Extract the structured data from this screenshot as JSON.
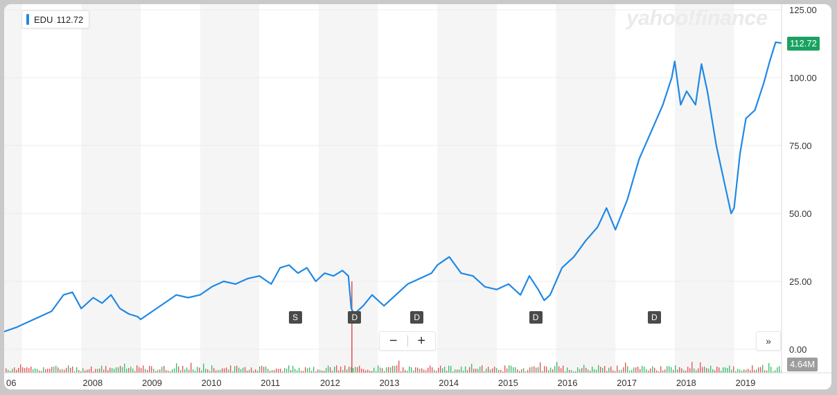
{
  "brand": {
    "watermark": "yahoo!finance"
  },
  "legend": {
    "symbol": "EDU",
    "value": "112.72",
    "color": "#1e88e5"
  },
  "price_tag": {
    "label": "112.72",
    "color": "#1aa260"
  },
  "volume_tag": {
    "label": "4.64M"
  },
  "controls": {
    "zoom_out": "−",
    "zoom_in": "+",
    "expand": "»"
  },
  "events": [
    {
      "label": "S",
      "year": 2011.6
    },
    {
      "label": "D",
      "year": 2012.6
    },
    {
      "label": "D",
      "year": 2013.65
    },
    {
      "label": "D",
      "year": 2015.65
    },
    {
      "label": "D",
      "year": 2017.65
    }
  ],
  "chart_data": {
    "type": "line",
    "title": "",
    "xlabel": "",
    "ylabel": "",
    "ylim": [
      0,
      125
    ],
    "xlim": [
      2006.7,
      2019.8
    ],
    "y_ticks": [
      "125.00",
      "100.00",
      "75.00",
      "50.00",
      "25.00",
      "0.00"
    ],
    "x_tick_labels": [
      "06",
      "2008",
      "2009",
      "2010",
      "2011",
      "2012",
      "2013",
      "2014",
      "2015",
      "2016",
      "2017",
      "2018",
      "2019"
    ],
    "grid": true,
    "legend": "top-left",
    "series": [
      {
        "name": "EDU",
        "color": "#1e88e5",
        "x": [
          2006.7,
          2006.9,
          2007.1,
          2007.3,
          2007.5,
          2007.7,
          2007.85,
          2008.0,
          2008.1,
          2008.2,
          2008.35,
          2008.5,
          2008.65,
          2008.8,
          2008.95,
          2009.0,
          2009.2,
          2009.4,
          2009.6,
          2009.8,
          2010.0,
          2010.2,
          2010.4,
          2010.6,
          2010.8,
          2011.0,
          2011.2,
          2011.35,
          2011.5,
          2011.65,
          2011.8,
          2011.95,
          2012.1,
          2012.25,
          2012.4,
          2012.5,
          2012.55,
          2012.6,
          2012.75,
          2012.9,
          2013.1,
          2013.3,
          2013.5,
          2013.7,
          2013.9,
          2014.0,
          2014.2,
          2014.4,
          2014.6,
          2014.8,
          2015.0,
          2015.2,
          2015.4,
          2015.55,
          2015.7,
          2015.8,
          2015.9,
          2016.1,
          2016.3,
          2016.5,
          2016.7,
          2016.85,
          2017.0,
          2017.2,
          2017.4,
          2017.6,
          2017.8,
          2017.95,
          2018.0,
          2018.1,
          2018.2,
          2018.35,
          2018.45,
          2018.55,
          2018.7,
          2018.85,
          2018.95,
          2019.0,
          2019.1,
          2019.2,
          2019.35,
          2019.5,
          2019.6,
          2019.7,
          2019.8
        ],
        "values": [
          6.5,
          8,
          10,
          12,
          14,
          20,
          21,
          15,
          17,
          19,
          17,
          20,
          15,
          13,
          12,
          11,
          14,
          17,
          20,
          19,
          20,
          23,
          25,
          24,
          26,
          27,
          24,
          30,
          31,
          28,
          30,
          25,
          28,
          27,
          29,
          27,
          15,
          13,
          16,
          20,
          16,
          20,
          24,
          26,
          28,
          31,
          34,
          28,
          27,
          23,
          22,
          24,
          20,
          27,
          22,
          18,
          20,
          30,
          34,
          40,
          45,
          52,
          44,
          55,
          70,
          80,
          90,
          100,
          106,
          90,
          95,
          90,
          105,
          95,
          75,
          60,
          50,
          52,
          72,
          85,
          88,
          98,
          106,
          113,
          112.72
        ]
      }
    ],
    "volume": {
      "unit": "M",
      "last": 4.64,
      "up_color": "#3dbf6e",
      "down_color": "#e0595a"
    }
  }
}
